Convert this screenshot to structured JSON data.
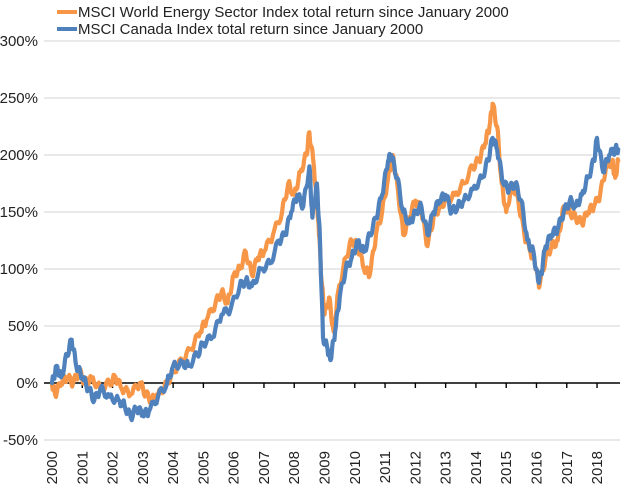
{
  "chart_data": {
    "type": "line",
    "title": "",
    "xlabel": "",
    "ylabel": "",
    "ylim": [
      -50,
      300
    ],
    "xlim": [
      2000,
      2018.7
    ],
    "y_ticks": [
      -50,
      0,
      50,
      100,
      150,
      200,
      250,
      300
    ],
    "y_tick_labels": [
      "-50%",
      "0%",
      "50%",
      "100%",
      "150%",
      "200%",
      "250%",
      "300%"
    ],
    "x_tick_labels": [
      "2000",
      "2001",
      "2002",
      "2003",
      "2004",
      "2005",
      "2006",
      "2007",
      "2008",
      "2009",
      "2010",
      "2011",
      "2012",
      "2013",
      "2014",
      "2015",
      "2016",
      "2017",
      "2018"
    ],
    "x_ticks": [
      2000,
      2001,
      2002,
      2003,
      2004,
      2005,
      2006,
      2007,
      2008,
      2009,
      2010,
      2011,
      2012,
      2013,
      2014,
      2015,
      2016,
      2017,
      2018
    ],
    "grid": true,
    "legend_position": "top-left",
    "series": [
      {
        "name": "MSCI World Energy Sector Index total return since January 2000",
        "color": "#f79646",
        "x": [
          2000.0,
          2000.1,
          2000.3,
          2000.5,
          2000.7,
          2000.9,
          2001.1,
          2001.3,
          2001.6,
          2001.9,
          2002.1,
          2002.3,
          2002.6,
          2002.9,
          2003.1,
          2003.3,
          2003.5,
          2003.8,
          2004.0,
          2004.3,
          2004.6,
          2004.9,
          2005.1,
          2005.4,
          2005.6,
          2005.8,
          2006.0,
          2006.2,
          2006.4,
          2006.6,
          2006.8,
          2007.0,
          2007.3,
          2007.6,
          2007.8,
          2008.0,
          2008.2,
          2008.4,
          2008.5,
          2008.65,
          2008.8,
          2008.9,
          2009.0,
          2009.15,
          2009.3,
          2009.45,
          2009.7,
          2009.9,
          2010.1,
          2010.3,
          2010.5,
          2010.7,
          2010.9,
          2011.1,
          2011.25,
          2011.4,
          2011.6,
          2011.8,
          2012.0,
          2012.2,
          2012.4,
          2012.6,
          2012.8,
          2013.0,
          2013.3,
          2013.6,
          2013.9,
          2014.1,
          2014.3,
          2014.45,
          2014.55,
          2014.7,
          2014.85,
          2015.0,
          2015.2,
          2015.4,
          2015.6,
          2015.8,
          2016.0,
          2016.1,
          2016.3,
          2016.5,
          2016.7,
          2016.9,
          2017.1,
          2017.3,
          2017.5,
          2017.7,
          2017.9,
          2018.1,
          2018.3,
          2018.5,
          2018.6,
          2018.7
        ],
        "values": [
          0,
          -10,
          0,
          5,
          0,
          10,
          0,
          5,
          -5,
          0,
          5,
          -5,
          -10,
          0,
          -10,
          -15,
          -10,
          0,
          10,
          20,
          30,
          45,
          55,
          70,
          80,
          70,
          95,
          100,
          115,
          95,
          110,
          115,
          130,
          150,
          175,
          165,
          185,
          200,
          220,
          190,
          140,
          90,
          60,
          75,
          45,
          80,
          110,
          125,
          120,
          100,
          95,
          130,
          150,
          180,
          200,
          175,
          130,
          145,
          160,
          150,
          120,
          145,
          155,
          160,
          165,
          175,
          190,
          195,
          210,
          225,
          245,
          225,
          175,
          150,
          175,
          160,
          130,
          115,
          100,
          85,
          110,
          120,
          125,
          155,
          150,
          145,
          140,
          150,
          155,
          165,
          190,
          195,
          180,
          195
        ]
      },
      {
        "name": "MSCI Canada Index total return since January 2000",
        "color": "#4f81bd",
        "x": [
          2000.0,
          2000.15,
          2000.3,
          2000.5,
          2000.65,
          2000.8,
          2001.0,
          2001.2,
          2001.4,
          2001.6,
          2001.9,
          2002.2,
          2002.4,
          2002.6,
          2002.8,
          2003.0,
          2003.2,
          2003.5,
          2003.8,
          2004.0,
          2004.3,
          2004.5,
          2004.8,
          2005.0,
          2005.3,
          2005.6,
          2005.9,
          2006.2,
          2006.4,
          2006.6,
          2006.9,
          2007.2,
          2007.5,
          2007.7,
          2007.9,
          2008.1,
          2008.3,
          2008.5,
          2008.6,
          2008.75,
          2008.85,
          2008.95,
          2009.1,
          2009.2,
          2009.35,
          2009.5,
          2009.7,
          2009.9,
          2010.1,
          2010.3,
          2010.5,
          2010.7,
          2010.9,
          2011.1,
          2011.2,
          2011.4,
          2011.6,
          2011.8,
          2012.0,
          2012.2,
          2012.4,
          2012.6,
          2012.8,
          2013.0,
          2013.2,
          2013.4,
          2013.6,
          2013.9,
          2014.2,
          2014.4,
          2014.55,
          2014.7,
          2014.9,
          2015.1,
          2015.3,
          2015.5,
          2015.7,
          2015.9,
          2016.05,
          2016.15,
          2016.3,
          2016.5,
          2016.7,
          2016.9,
          2017.1,
          2017.3,
          2017.5,
          2017.7,
          2017.9,
          2018.0,
          2018.2,
          2018.4,
          2018.6,
          2018.7
        ],
        "values": [
          0,
          15,
          5,
          25,
          38,
          15,
          5,
          -5,
          -15,
          -5,
          -12,
          -15,
          -20,
          -30,
          -22,
          -28,
          -25,
          -12,
          0,
          15,
          18,
          15,
          25,
          35,
          40,
          60,
          65,
          85,
          90,
          85,
          100,
          105,
          125,
          130,
          150,
          165,
          155,
          190,
          145,
          175,
          125,
          40,
          30,
          20,
          45,
          75,
          100,
          110,
          125,
          115,
          130,
          145,
          165,
          195,
          200,
          180,
          150,
          140,
          150,
          155,
          130,
          150,
          160,
          165,
          150,
          155,
          160,
          170,
          180,
          195,
          215,
          205,
          175,
          170,
          175,
          160,
          125,
          115,
          90,
          95,
          120,
          130,
          135,
          150,
          160,
          155,
          165,
          180,
          195,
          215,
          185,
          200,
          205,
          205
        ]
      }
    ]
  }
}
